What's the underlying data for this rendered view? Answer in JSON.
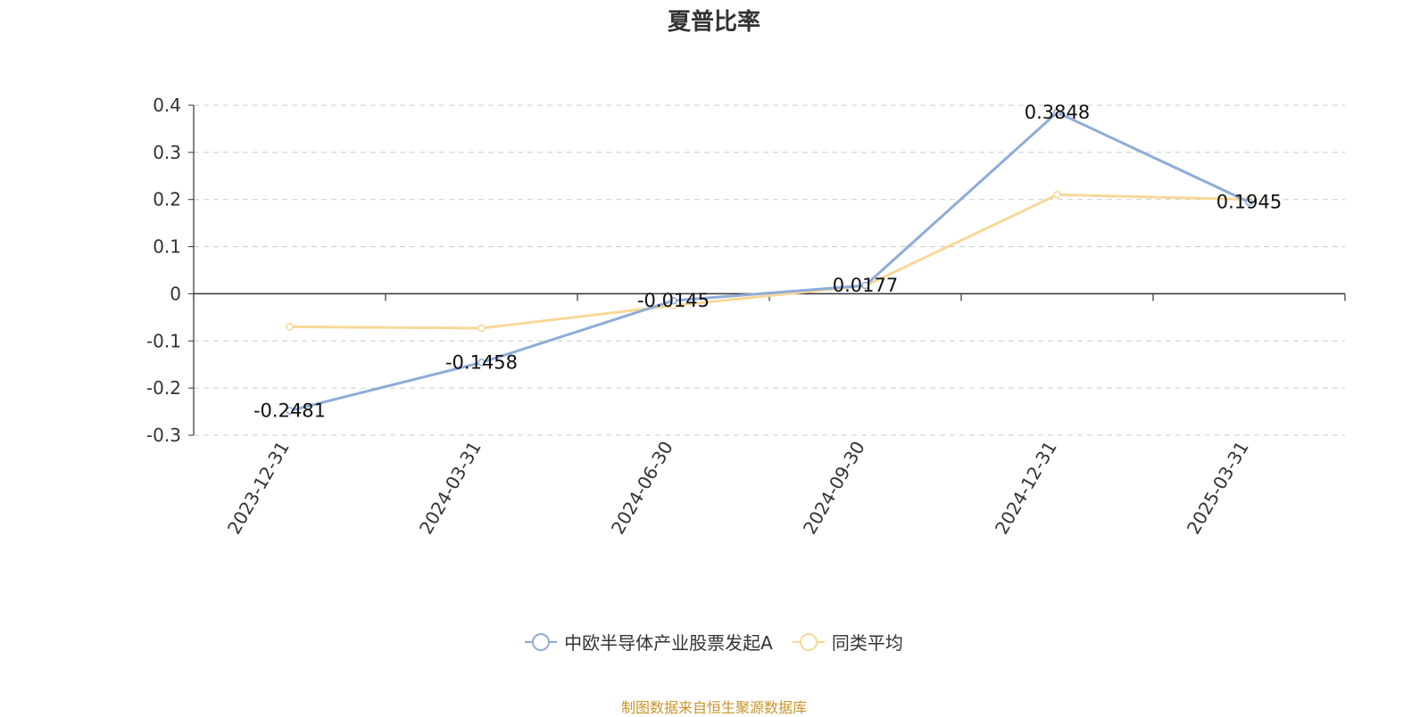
{
  "chart_data": {
    "type": "line",
    "title": "夏普比率",
    "categories": [
      "2023-12-31",
      "2024-03-31",
      "2024-06-30",
      "2024-09-30",
      "2024-12-31",
      "2025-03-31"
    ],
    "series": [
      {
        "name": "中欧半导体产业股票发起A",
        "color": "#8eacd8",
        "values": [
          -0.2481,
          -0.1458,
          -0.0145,
          0.0177,
          0.3848,
          0.1945
        ],
        "labels": [
          "-0.2481",
          "-0.1458",
          "-0.0145",
          "0.0177",
          "0.3848",
          "0.1945"
        ]
      },
      {
        "name": "同类平均",
        "color": "#f8d898",
        "values": [
          -0.07,
          -0.073,
          -0.025,
          0.017,
          0.21,
          0.2
        ]
      }
    ],
    "yticks": [
      0.4,
      0.3,
      0.2,
      0.1,
      0,
      -0.1,
      -0.2,
      -0.3
    ],
    "ytick_labels": [
      "0.4",
      "0.3",
      "0.2",
      "0.1",
      "0",
      "-0.1",
      "-0.2",
      "-0.3"
    ],
    "ylim": [
      -0.3,
      0.4
    ],
    "grid": true,
    "legend_position": "bottom"
  },
  "source_note": "制图数据来自恒生聚源数据库"
}
